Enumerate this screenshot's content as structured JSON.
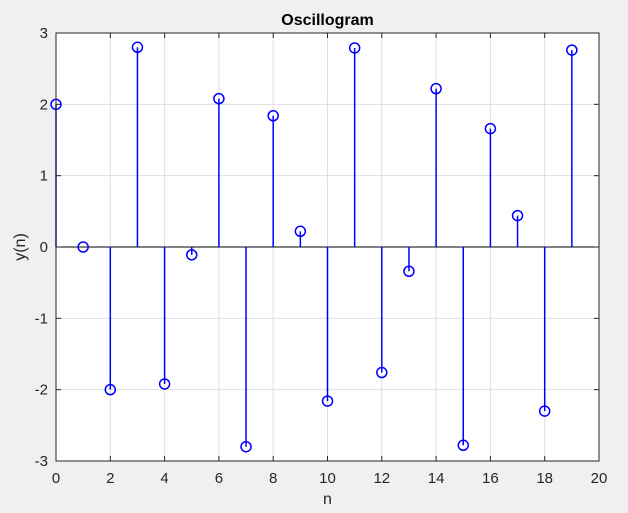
{
  "chart_data": {
    "type": "stem",
    "title": "Oscillogram",
    "xlabel": "n",
    "ylabel": "y(n)",
    "xlim": [
      0,
      20
    ],
    "ylim": [
      -3,
      3
    ],
    "xticks": [
      "0",
      "2",
      "4",
      "6",
      "8",
      "10",
      "12",
      "14",
      "16",
      "18",
      "20"
    ],
    "yticks": [
      "-3",
      "-2",
      "-1",
      "0",
      "1",
      "2",
      "3"
    ],
    "grid": true,
    "x": [
      0,
      1,
      2,
      3,
      4,
      5,
      6,
      7,
      8,
      9,
      10,
      11,
      12,
      13,
      14,
      15,
      16,
      17,
      18,
      19
    ],
    "y": [
      2.0,
      0.0,
      -2.0,
      2.8,
      -1.92,
      -0.11,
      2.08,
      -2.8,
      1.84,
      0.22,
      -2.16,
      2.79,
      -1.76,
      -0.34,
      2.22,
      -2.78,
      1.66,
      0.44,
      -2.3,
      2.76
    ],
    "marker": "circle",
    "color": "#0000ff"
  }
}
